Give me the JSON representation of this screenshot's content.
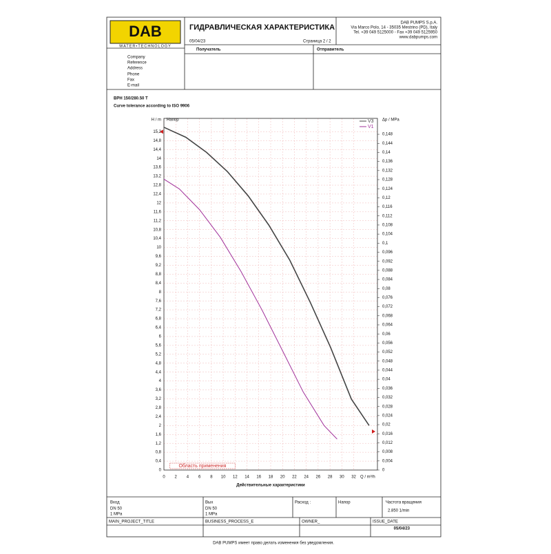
{
  "doc": {
    "logo": "DAB",
    "logo_sub": "WATER•TECHNOLOGY",
    "title": "ГИДРАВЛИЧЕСКАЯ ХАРАКТЕРИСТИКА",
    "date": "05/04/23",
    "page": "Страница 2 / 2",
    "company": [
      "DAB PUMPS S.p.A.",
      "Via Marco Polo, 14 - 35035 Mestrino (PD), Italy",
      "Tel. +39 049 5125000 - Fax +39 049 5125950",
      "www.dabpumps.com"
    ],
    "recipient": "Получатель",
    "sender": "Отправитель",
    "fields": [
      "Company",
      "Reference",
      "Address",
      "Phone",
      "Fax",
      "E-mail"
    ],
    "model": "BPH 150/280.50 T",
    "tolerance": "Curve tolerance according to ISO 9906",
    "footer": {
      "inlet": "Вход",
      "inlet_dn": "DN 50",
      "inlet_p": "1 MPa",
      "outlet": "Вых",
      "outlet_dn": "DN 50",
      "outlet_p": "1 MPa",
      "flow": "Расход :",
      "head": "Напор",
      "speed": "Частота вращения",
      "speed_value": "2.850 1/min",
      "project": "MAIN_PROJECT_TITLE",
      "process": "BUSINESS_PROCESS_E",
      "owner": "OWNER_",
      "issue": "ISSUE_DATE",
      "issue_date": "05/04/23"
    },
    "note": "DAB PUMPS имеет право делать изменения без уведомления."
  },
  "chart_data": {
    "type": "line",
    "ylabel": "H / m",
    "y2label": "Δp / MPa",
    "xlabel": "Q / m³/h",
    "head_label": "Напор",
    "xtitle": "Действительные характеристики",
    "range_label": "Область применения",
    "range": [
      1,
      12
    ],
    "duty_marks": [
      15.2,
      0.017
    ],
    "xlim": [
      0,
      36
    ],
    "xticks": [
      0,
      2,
      4,
      6,
      8,
      10,
      12,
      14,
      16,
      18,
      20,
      22,
      24,
      26,
      28,
      30,
      32
    ],
    "ylim": [
      0,
      15.8
    ],
    "y2lim": [
      0,
      0.155
    ],
    "grid": true,
    "legend": "top-right",
    "yticks": [
      0,
      {
        "value": 0.4,
        "label": "0,4"
      },
      {
        "value": 0.8,
        "label": "0,8"
      },
      {
        "value": 1.2,
        "label": "1,2"
      },
      {
        "value": 1.6,
        "label": "1,6"
      },
      2,
      {
        "value": 2.4,
        "label": "2,4"
      },
      {
        "value": 2.8,
        "label": "2,8"
      },
      {
        "value": 3.2,
        "label": "3,2"
      },
      {
        "value": 3.6,
        "label": "3,6"
      },
      4,
      {
        "value": 4.4,
        "label": "4,4"
      },
      {
        "value": 4.8,
        "label": "4,8"
      },
      {
        "value": 5.2,
        "label": "5,2"
      },
      {
        "value": 5.6,
        "label": "5,6"
      },
      6,
      {
        "value": 6.4,
        "label": "6,4"
      },
      {
        "value": 6.8,
        "label": "6,8"
      },
      {
        "value": 7.2,
        "label": "7,2"
      },
      {
        "value": 7.6,
        "label": "7,6"
      },
      8,
      {
        "value": 8.4,
        "label": "8,4"
      },
      {
        "value": 8.8,
        "label": "8,8"
      },
      {
        "value": 9.2,
        "label": "9,2"
      },
      {
        "value": 9.6,
        "label": "9,6"
      },
      10,
      {
        "value": 10.4,
        "label": "10,4"
      },
      {
        "value": 10.8,
        "label": "10,8"
      },
      {
        "value": 11.2,
        "label": "11,2"
      },
      {
        "value": 11.6,
        "label": "11,6"
      },
      12,
      {
        "value": 12.4,
        "label": "12,4"
      },
      {
        "value": 12.8,
        "label": "12,8"
      },
      {
        "value": 13.2,
        "label": "13,2"
      },
      {
        "value": 13.6,
        "label": "13,6"
      },
      14,
      {
        "value": 14.4,
        "label": "14,4"
      },
      {
        "value": 14.8,
        "label": "14,8"
      },
      {
        "value": 15.2,
        "label": "15,2"
      }
    ],
    "y2ticks": [
      0,
      {
        "value": 0.004,
        "label": "0,004"
      },
      {
        "value": 0.008,
        "label": "0,008"
      },
      {
        "value": 0.012,
        "label": "0,012"
      },
      {
        "value": 0.016,
        "label": "0,016"
      },
      {
        "value": 0.02,
        "label": "0,02"
      },
      {
        "value": 0.024,
        "label": "0,024"
      },
      {
        "value": 0.028,
        "label": "0,028"
      },
      {
        "value": 0.032,
        "label": "0,032"
      },
      {
        "value": 0.036,
        "label": "0,036"
      },
      {
        "value": 0.04,
        "label": "0,04"
      },
      {
        "value": 0.044,
        "label": "0,044"
      },
      {
        "value": 0.048,
        "label": "0,048"
      },
      {
        "value": 0.052,
        "label": "0,052"
      },
      {
        "value": 0.056,
        "label": "0,056"
      },
      {
        "value": 0.06,
        "label": "0,06"
      },
      {
        "value": 0.064,
        "label": "0,064"
      },
      {
        "value": 0.068,
        "label": "0,068"
      },
      {
        "value": 0.072,
        "label": "0,072"
      },
      {
        "value": 0.076,
        "label": "0,076"
      },
      {
        "value": 0.08,
        "label": "0,08"
      },
      {
        "value": 0.084,
        "label": "0,084"
      },
      {
        "value": 0.088,
        "label": "0,088"
      },
      {
        "value": 0.092,
        "label": "0,092"
      },
      {
        "value": 0.096,
        "label": "0,096"
      },
      {
        "value": 0.1,
        "label": "0,1"
      },
      {
        "value": 0.104,
        "label": "0,104"
      },
      {
        "value": 0.108,
        "label": "0,108"
      },
      {
        "value": 0.112,
        "label": "0,112"
      },
      {
        "value": 0.116,
        "label": "0,116"
      },
      {
        "value": 0.12,
        "label": "0,12"
      },
      {
        "value": 0.124,
        "label": "0,124"
      },
      {
        "value": 0.128,
        "label": "0,128"
      },
      {
        "value": 0.132,
        "label": "0,132"
      },
      {
        "value": 0.136,
        "label": "0,136"
      },
      {
        "value": 0.14,
        "label": "0,14"
      },
      {
        "value": 0.144,
        "label": "0,144"
      },
      {
        "value": 0.148,
        "label": "0,148"
      }
    ],
    "series": [
      {
        "name": "V3",
        "color": "#444444",
        "x": [
          0,
          3.7,
          7.2,
          10.7,
          14.2,
          17.7,
          21.2,
          24.7,
          28.1,
          31.6,
          34.6
        ],
        "values": [
          15.4,
          14.95,
          14.27,
          13.41,
          12.32,
          11.0,
          9.44,
          7.52,
          5.51,
          3.19,
          2.0
        ]
      },
      {
        "name": "V1",
        "color": "#a0309a",
        "x": [
          0,
          2.6,
          6.0,
          9.5,
          13.0,
          16.5,
          20.0,
          23.5,
          27.0,
          29.2
        ],
        "values": [
          13.07,
          12.63,
          11.7,
          10.46,
          8.92,
          7.21,
          5.36,
          3.5,
          2.0,
          1.39
        ]
      }
    ]
  }
}
